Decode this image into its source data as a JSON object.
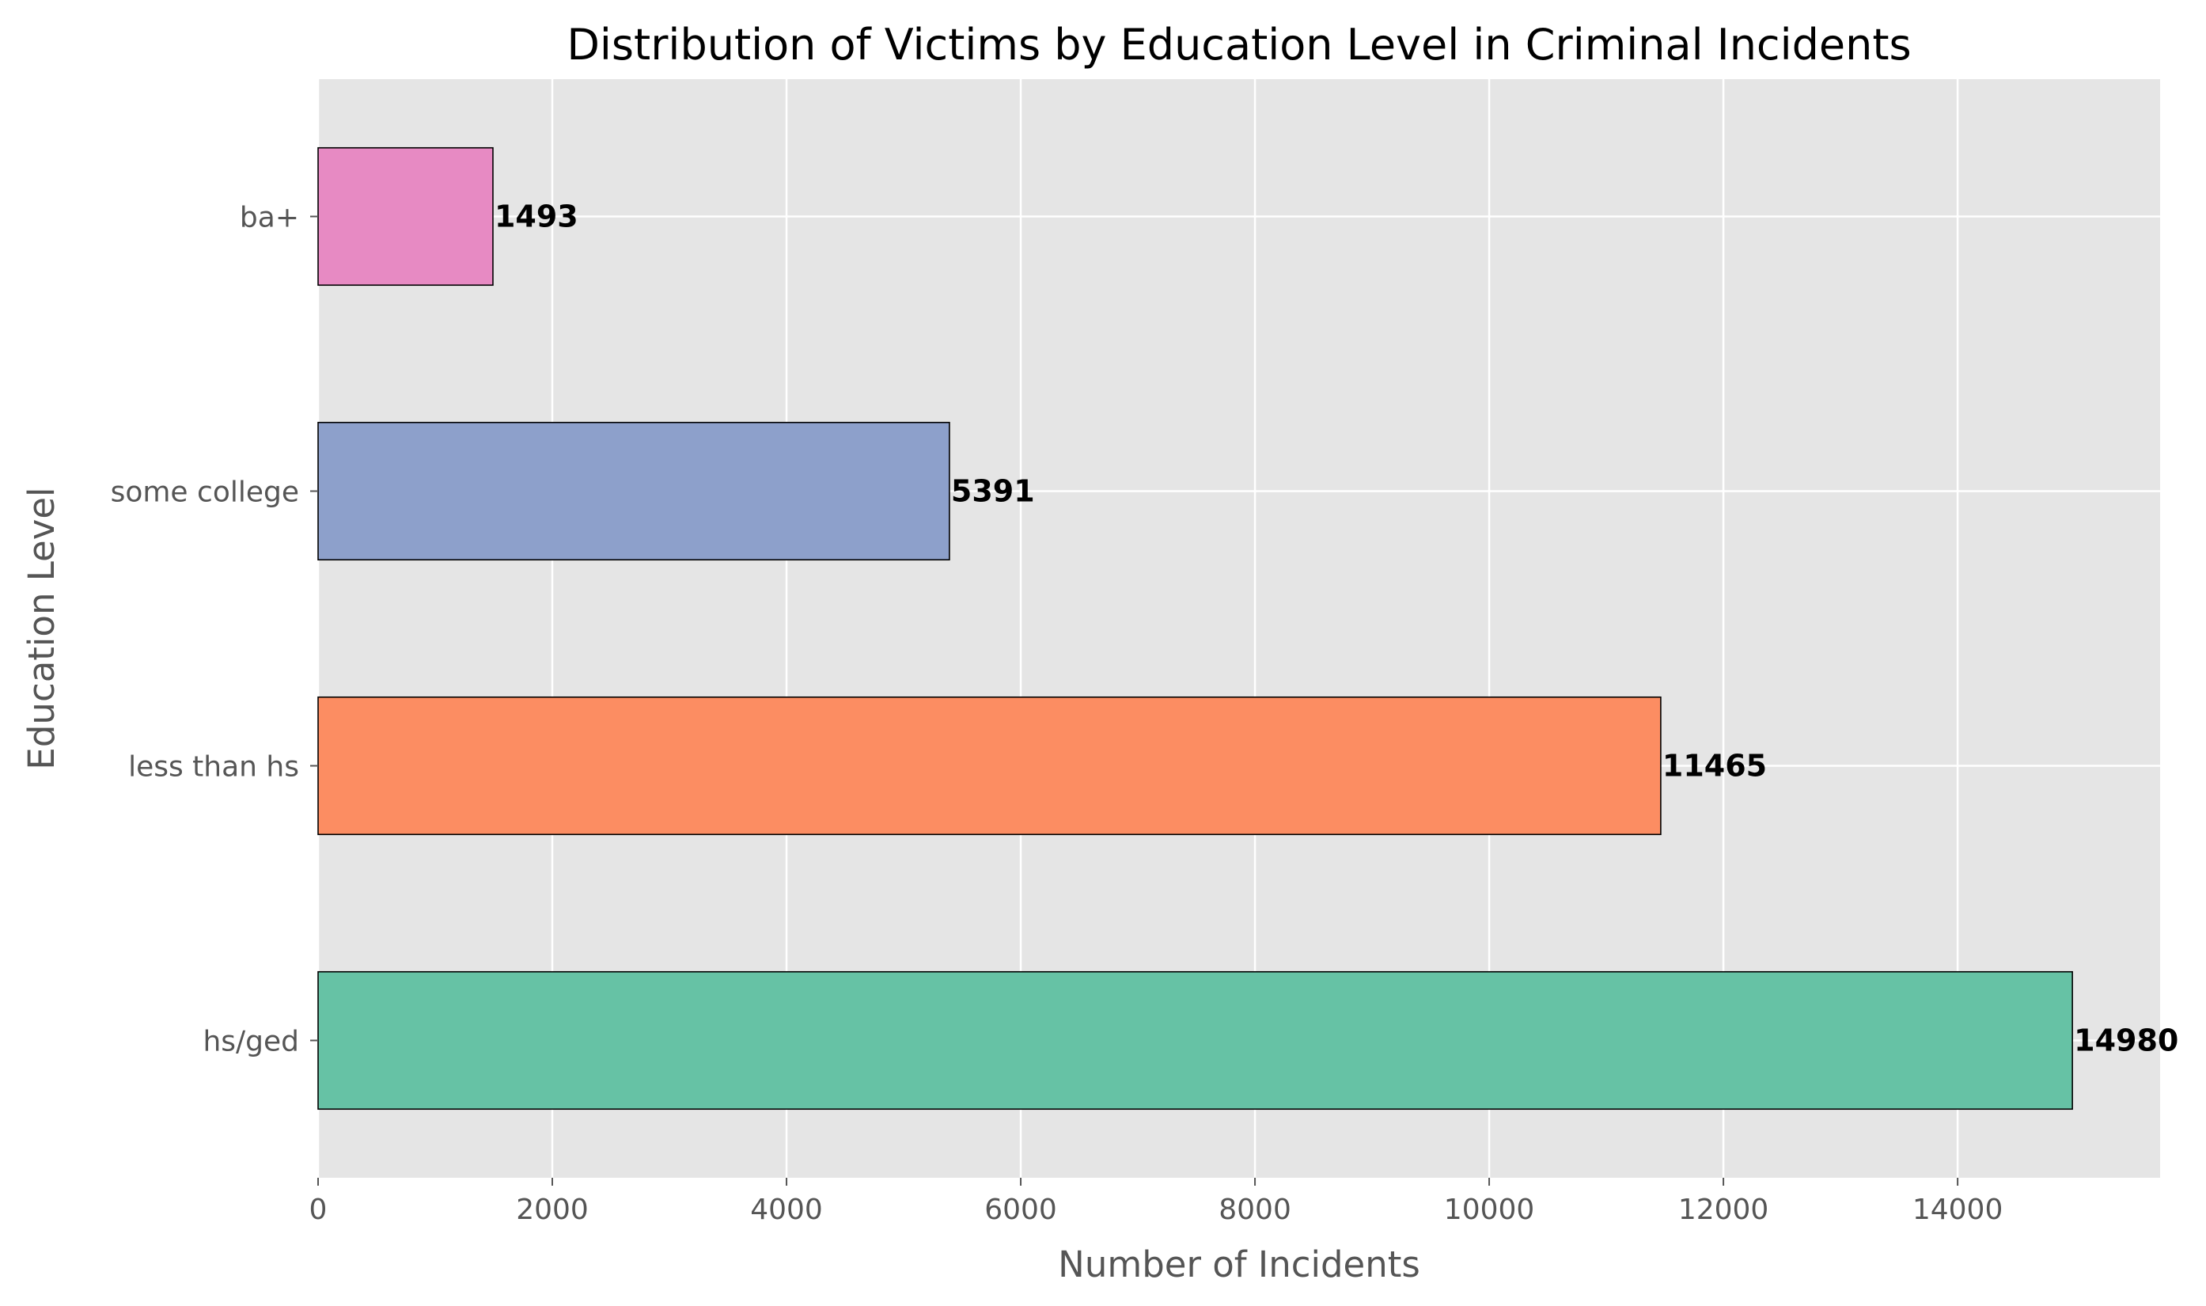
{
  "chart_data": {
    "type": "bar",
    "orientation": "horizontal",
    "title": "Distribution of Victims by Education Level in Criminal Incidents",
    "xlabel": "Number of Incidents",
    "ylabel": "Education Level",
    "categories": [
      "hs/ged",
      "less than hs",
      "some college",
      "ba+"
    ],
    "values": [
      14980,
      11465,
      5391,
      1493
    ],
    "colors": [
      "#66c2a5",
      "#fc8d62",
      "#8da0cb",
      "#e78ac3"
    ],
    "xlim": [
      0,
      15729
    ],
    "xticks": [
      0,
      2000,
      4000,
      6000,
      8000,
      10000,
      12000,
      14000
    ],
    "grid": true,
    "legend": "none",
    "background": "#e5e5e5",
    "grid_color": "#ffffff"
  }
}
